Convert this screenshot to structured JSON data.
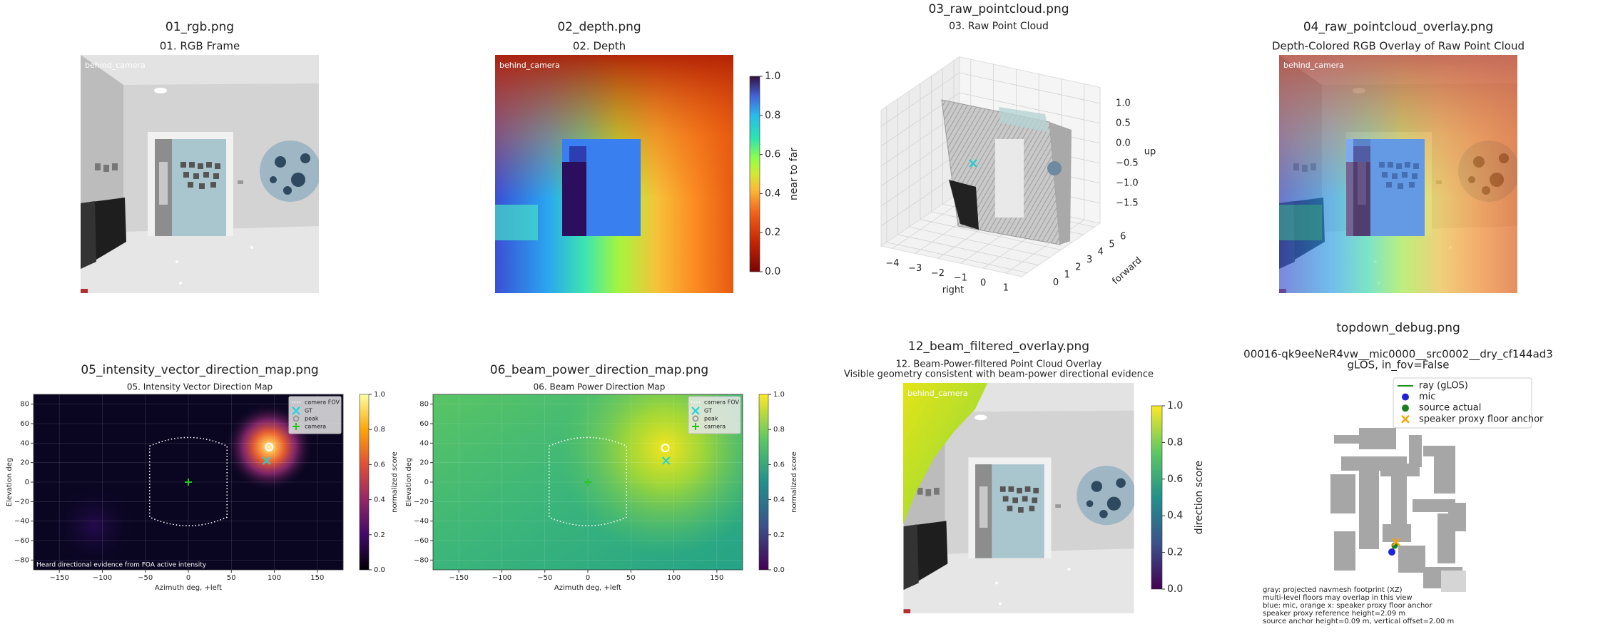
{
  "chart_data": [
    {
      "type": "image",
      "file": "01_rgb.png",
      "title": "01. RGB Frame",
      "image_label": "behind_camera"
    },
    {
      "type": "image",
      "file": "02_depth.png",
      "title": "02. Depth",
      "image_label": "behind_camera",
      "colorbar": {
        "label": "near to far",
        "ylim": [
          0,
          1
        ],
        "yticks": [
          {
            "value": 0,
            "label": "0.0"
          },
          0.2,
          0.4,
          0.6,
          0.8,
          {
            "value": 1,
            "label": "1.0"
          }
        ]
      }
    },
    {
      "type": "scatter3d",
      "file": "03_raw_pointcloud.png",
      "title": "03. Raw Point Cloud",
      "xlabel": "right",
      "ylabel": "forward",
      "zlabel": "up",
      "xlim": [
        -4.5,
        1.7
      ],
      "ylim": [
        -0.5,
        6.5
      ],
      "zlim": [
        -2,
        1.4
      ],
      "xticks": [
        {
          "value": -4,
          "label": "−4"
        },
        {
          "value": -3,
          "label": "−3"
        },
        {
          "value": -2,
          "label": "−2"
        },
        {
          "value": -1,
          "label": "−1"
        },
        0,
        1
      ],
      "yticks": [
        0,
        1,
        2,
        3,
        4,
        5,
        6
      ],
      "zticks": [
        {
          "value": 1,
          "label": "1.0"
        },
        0.5,
        {
          "value": 0,
          "label": "0.0"
        },
        {
          "value": -0.5,
          "label": "−0.5"
        },
        {
          "value": -1,
          "label": "−1.0"
        },
        {
          "value": -1.5,
          "label": "−1.5"
        }
      ]
    },
    {
      "type": "image",
      "file": "04_raw_pointcloud_overlay.png",
      "title": "Depth-Colored RGB Overlay of Raw Point Cloud",
      "image_label": "behind_camera"
    },
    {
      "type": "heatmap",
      "file": "05_intensity_vector_direction_map.png",
      "title": "05. Intensity Vector Direction Map",
      "xlabel": "Azimuth deg, +left",
      "ylabel": "Elevation deg",
      "grid": true,
      "xlim": [
        -180,
        180
      ],
      "ylim": [
        -90,
        90
      ],
      "xticks": [
        {
          "value": -150,
          "label": "−150"
        },
        {
          "value": -100,
          "label": "−100"
        },
        {
          "value": -50,
          "label": "−50"
        },
        0,
        50,
        100,
        150
      ],
      "yticks": [
        {
          "value": -80,
          "label": "−80"
        },
        {
          "value": -60,
          "label": "−60"
        },
        {
          "value": -40,
          "label": "−40"
        },
        {
          "value": -20,
          "label": "−20"
        },
        0,
        20,
        40,
        60,
        80
      ],
      "fov": {
        "name": "camera FOV",
        "x": [
          -45,
          45
        ],
        "y": [
          -36,
          37
        ]
      },
      "markers": [
        {
          "name": "GT",
          "x": 91,
          "y": 22
        },
        {
          "name": "peak",
          "x": 94,
          "y": 36
        },
        {
          "name": "camera",
          "x": 0,
          "y": 0
        }
      ],
      "annotation": "Heard directional evidence from FOA active intensity",
      "colorbar": {
        "label": "normalized score",
        "ylim": [
          0,
          1
        ],
        "yticks": [
          {
            "value": 0,
            "label": "0.0"
          },
          0.2,
          0.4,
          0.6,
          0.8,
          {
            "value": 1,
            "label": "1.0"
          }
        ]
      }
    },
    {
      "type": "heatmap",
      "file": "06_beam_power_direction_map.png",
      "title": "06. Beam Power Direction Map",
      "xlabel": "Azimuth deg, +left",
      "ylabel": "Elevation deg",
      "grid": true,
      "xlim": [
        -180,
        180
      ],
      "ylim": [
        -90,
        90
      ],
      "xticks": [
        {
          "value": -150,
          "label": "−150"
        },
        {
          "value": -100,
          "label": "−100"
        },
        {
          "value": -50,
          "label": "−50"
        },
        0,
        50,
        100,
        150
      ],
      "yticks": [
        {
          "value": -80,
          "label": "−80"
        },
        {
          "value": -60,
          "label": "−60"
        },
        {
          "value": -40,
          "label": "−40"
        },
        {
          "value": -20,
          "label": "−20"
        },
        0,
        20,
        40,
        60,
        80
      ],
      "fov": {
        "name": "camera FOV",
        "x": [
          -45,
          45
        ],
        "y": [
          -36,
          37
        ]
      },
      "markers": [
        {
          "name": "GT",
          "x": 91,
          "y": 22
        },
        {
          "name": "peak",
          "x": 90,
          "y": 35
        },
        {
          "name": "camera",
          "x": 0,
          "y": 0
        }
      ],
      "colorbar": {
        "label": "normalized score",
        "ylim": [
          0,
          1
        ],
        "yticks": [
          {
            "value": 0,
            "label": "0.0"
          },
          0.2,
          0.4,
          0.6,
          0.8,
          {
            "value": 1,
            "label": "1.0"
          }
        ]
      }
    },
    {
      "type": "image",
      "file": "12_beam_filtered_overlay.png",
      "title": "12. Beam-Power-filtered Point Cloud Overlay",
      "subtitle": "Visible geometry consistent with beam-power directional evidence",
      "image_label": "behind_camera",
      "colorbar": {
        "label": "direction score",
        "ylim": [
          0,
          1
        ],
        "yticks": [
          {
            "value": 0,
            "label": "0.0"
          },
          0.2,
          0.4,
          0.6,
          0.8,
          {
            "value": 1,
            "label": "1.0"
          }
        ]
      }
    },
    {
      "type": "topdown",
      "file": "topdown_debug.png",
      "title": "00016-qk9eeNeR4vw__mic0000__src0002__dry_cf144ad3",
      "subtitle": "gLOS, in_fov=False",
      "legend": [
        "ray (gLOS)",
        "mic",
        "source actual",
        "speaker proxy floor anchor"
      ],
      "notes": [
        "gray: projected navmesh footprint (XZ)",
        "multi-level floors may overlap in this view",
        "blue: mic, orange x: speaker proxy floor anchor",
        "speaker proxy reference height=2.09 m",
        "source anchor height=0.09 m, vertical offset=2.00 m"
      ]
    }
  ]
}
